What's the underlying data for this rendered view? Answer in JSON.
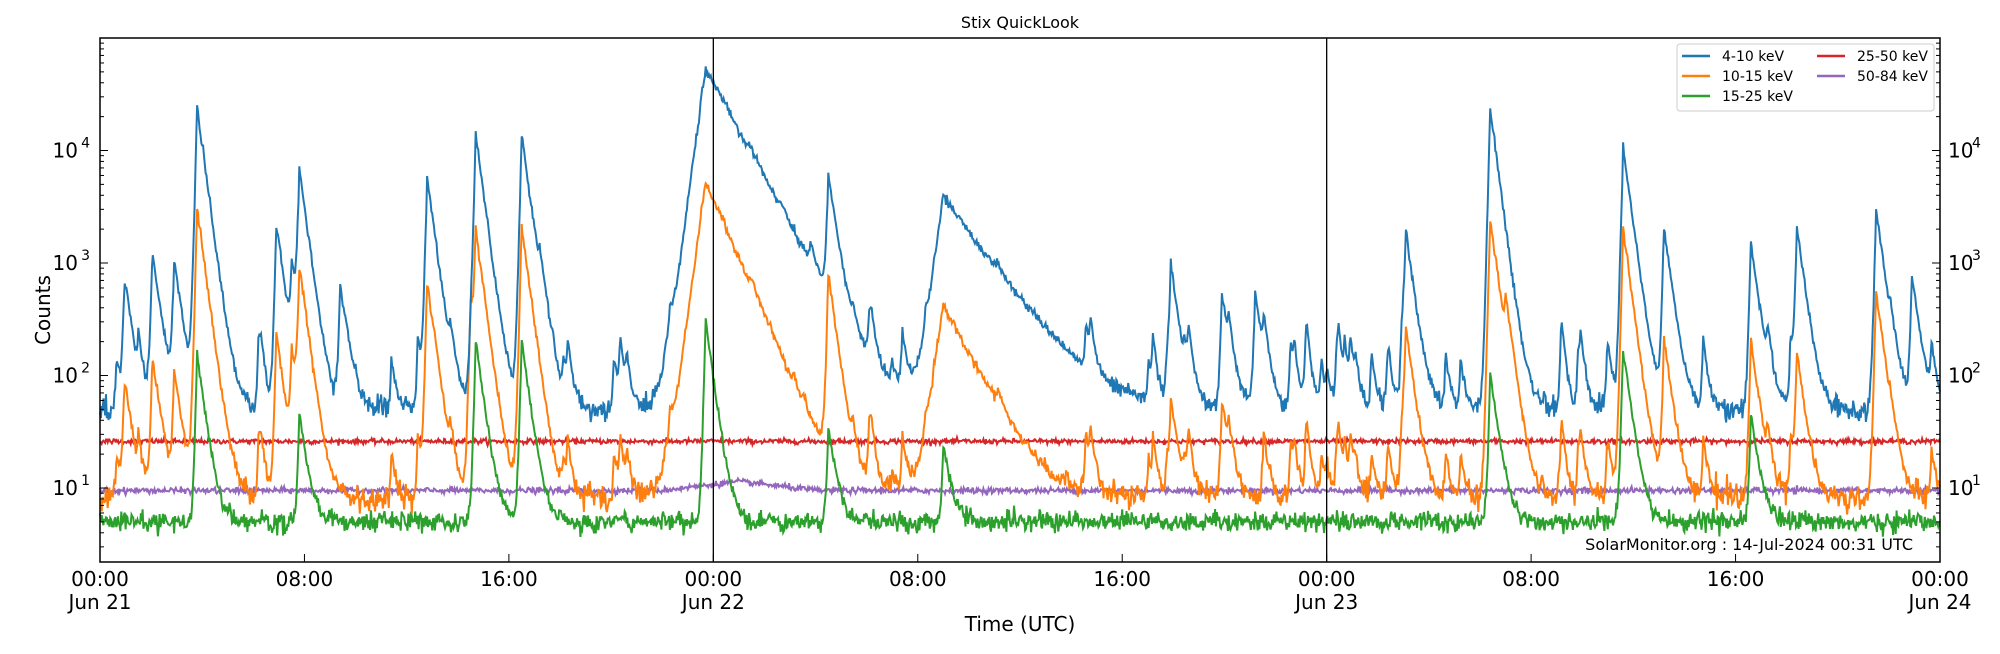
{
  "chart_data": {
    "type": "line",
    "title": "Stix QuickLook",
    "xlabel": "Time (UTC)",
    "ylabel": "Counts",
    "yscale": "log",
    "ylim": [
      2.2,
      100000
    ],
    "xlim": [
      "Jun 21 00:00",
      "Jun 24 00:00"
    ],
    "x_ticks": [
      {
        "time": "Jun 21 00:00",
        "label": "00:00",
        "sub": "Jun 21"
      },
      {
        "time": "Jun 21 08:00",
        "label": "08:00",
        "sub": ""
      },
      {
        "time": "Jun 21 16:00",
        "label": "16:00",
        "sub": ""
      },
      {
        "time": "Jun 22 00:00",
        "label": "00:00",
        "sub": "Jun 22"
      },
      {
        "time": "Jun 22 08:00",
        "label": "08:00",
        "sub": ""
      },
      {
        "time": "Jun 22 16:00",
        "label": "16:00",
        "sub": ""
      },
      {
        "time": "Jun 23 00:00",
        "label": "00:00",
        "sub": "Jun 23"
      },
      {
        "time": "Jun 23 08:00",
        "label": "08:00",
        "sub": ""
      },
      {
        "time": "Jun 23 16:00",
        "label": "16:00",
        "sub": ""
      },
      {
        "time": "Jun 24 00:00",
        "label": "00:00",
        "sub": "Jun 24"
      }
    ],
    "y_ticks": [
      {
        "value": 10,
        "base": "10",
        "exp": "1"
      },
      {
        "value": 100,
        "base": "10",
        "exp": "2"
      },
      {
        "value": 1000,
        "base": "10",
        "exp": "3"
      },
      {
        "value": 10000,
        "base": "10",
        "exp": "4"
      }
    ],
    "day_dividers": [
      "Jun 22 00:00",
      "Jun 23 00:00"
    ],
    "legend_placement": "top-right",
    "grid": false,
    "annotation": "SolarMonitor.org : 14-Jul-2024 00:31 UTC",
    "series": [
      {
        "name": "4-10 keV",
        "color": "#1f77b4",
        "baseline": 50,
        "noise": 0.12,
        "events": [
          [
            "Jun 21 00:57",
            600
          ],
          [
            "Jun 21 02:03",
            1200
          ],
          [
            "Jun 21 02:54",
            1000
          ],
          [
            "Jun 21 03:48",
            25000
          ],
          [
            "Jun 21 06:54",
            2200
          ],
          [
            "Jun 21 07:30",
            800
          ],
          [
            "Jun 21 07:48",
            6500
          ],
          [
            "Jun 21 09:24",
            600
          ],
          [
            "Jun 21 12:48",
            5800
          ],
          [
            "Jun 21 14:42",
            14000
          ],
          [
            "Jun 21 16:30",
            14000
          ],
          [
            "Jun 21 17:12",
            500
          ],
          [
            "Jun 21 23:42",
            55000,
            1.0
          ],
          [
            "Jun 22 01:24",
            1500,
            0.5
          ],
          [
            "Jun 22 02:36",
            600
          ],
          [
            "Jun 22 03:48",
            600
          ],
          [
            "Jun 22 04:30",
            6000
          ],
          [
            "Jun 22 09:00",
            3800,
            1.4
          ],
          [
            "Jun 22 17:54",
            900
          ],
          [
            "Jun 22 19:54",
            500
          ],
          [
            "Jun 22 21:12",
            500
          ],
          [
            "Jun 23 03:06",
            1800
          ],
          [
            "Jun 23 06:24",
            23000
          ],
          [
            "Jun 23 11:36",
            11000
          ],
          [
            "Jun 23 13:12",
            2000
          ],
          [
            "Jun 23 16:36",
            1500
          ],
          [
            "Jun 23 18:24",
            2000
          ],
          [
            "Jun 23 21:30",
            3000
          ],
          [
            "Jun 23 22:54",
            700
          ]
        ]
      },
      {
        "name": "10-15 keV",
        "color": "#ff7f0e",
        "baseline": 8,
        "noise": 0.14,
        "events": [
          [
            "Jun 21 00:57",
            70
          ],
          [
            "Jun 21 02:03",
            140
          ],
          [
            "Jun 21 02:54",
            100
          ],
          [
            "Jun 21 03:48",
            3100
          ],
          [
            "Jun 21 06:54",
            230
          ],
          [
            "Jun 21 07:30",
            150
          ],
          [
            "Jun 21 07:48",
            900
          ],
          [
            "Jun 21 12:48",
            700
          ],
          [
            "Jun 21 14:30",
            400
          ],
          [
            "Jun 21 14:42",
            1800
          ],
          [
            "Jun 21 16:30",
            2100
          ],
          [
            "Jun 21 23:42",
            5500,
            0.8
          ],
          [
            "Jun 22 01:24",
            120,
            0.5
          ],
          [
            "Jun 22 04:30",
            800
          ],
          [
            "Jun 22 09:00",
            420,
            1.0
          ],
          [
            "Jun 22 17:54",
            50
          ],
          [
            "Jun 22 19:54",
            50
          ],
          [
            "Jun 23 03:06",
            250
          ],
          [
            "Jun 23 06:24",
            2500
          ],
          [
            "Jun 23 07:00",
            300
          ],
          [
            "Jun 23 11:36",
            2000
          ],
          [
            "Jun 23 13:12",
            200
          ],
          [
            "Jun 23 16:36",
            200
          ],
          [
            "Jun 23 18:24",
            150
          ],
          [
            "Jun 23 21:30",
            550
          ]
        ]
      },
      {
        "name": "15-25 keV",
        "color": "#2ca02c",
        "baseline": 5,
        "noise": 0.1,
        "events": [
          [
            "Jun 21 03:48",
            150
          ],
          [
            "Jun 21 07:48",
            40
          ],
          [
            "Jun 21 14:42",
            200
          ],
          [
            "Jun 21 16:30",
            200
          ],
          [
            "Jun 21 23:42",
            300
          ],
          [
            "Jun 22 04:30",
            30
          ],
          [
            "Jun 22 09:00",
            20
          ],
          [
            "Jun 23 06:24",
            100
          ],
          [
            "Jun 23 11:36",
            170
          ],
          [
            "Jun 23 16:36",
            40
          ]
        ]
      },
      {
        "name": "25-50 keV",
        "color": "#d62728",
        "baseline": 26,
        "noise": 0.025,
        "events": []
      },
      {
        "name": "50-84 keV",
        "color": "#9467bd",
        "baseline": 9.5,
        "noise": 0.03,
        "events": [
          [
            "Jun 22 01:00",
            1.2,
            3
          ]
        ]
      }
    ]
  }
}
